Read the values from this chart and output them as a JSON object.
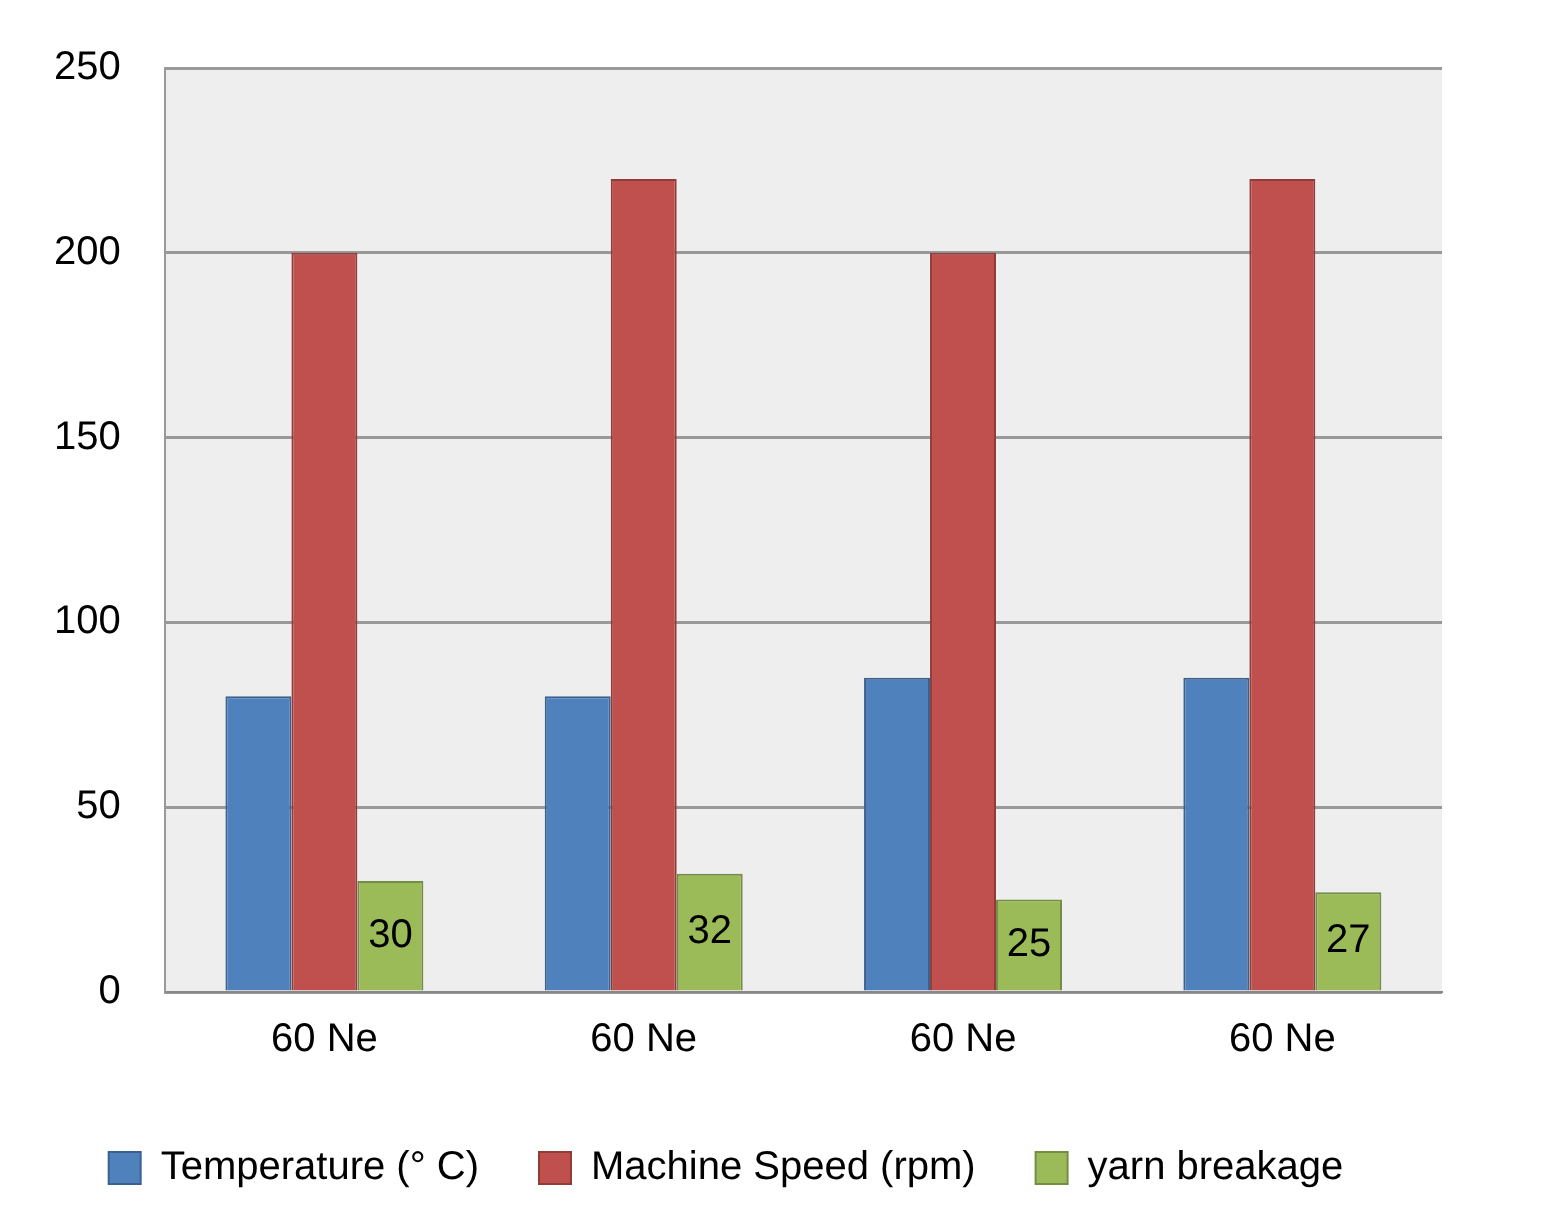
{
  "chart_data": {
    "type": "bar",
    "categories": [
      "60 Ne",
      "60 Ne",
      "60 Ne",
      "60 Ne"
    ],
    "series": [
      {
        "name": "Temperature (° C)",
        "color": "#4f81bd",
        "values": [
          80,
          80,
          85,
          85
        ]
      },
      {
        "name": "Machine Speed (rpm)",
        "color": "#c0504d",
        "values": [
          200,
          220,
          200,
          220
        ]
      },
      {
        "name": "yarn breakage",
        "color": "#9bbb59",
        "values": [
          30,
          32,
          25,
          27
        ],
        "value_labels": [
          "30",
          "32",
          "25",
          "27"
        ]
      }
    ],
    "ylim": [
      0,
      250
    ],
    "yticks": [
      0,
      50,
      100,
      150,
      200,
      250
    ],
    "grid": "y",
    "legend": "bottom"
  }
}
